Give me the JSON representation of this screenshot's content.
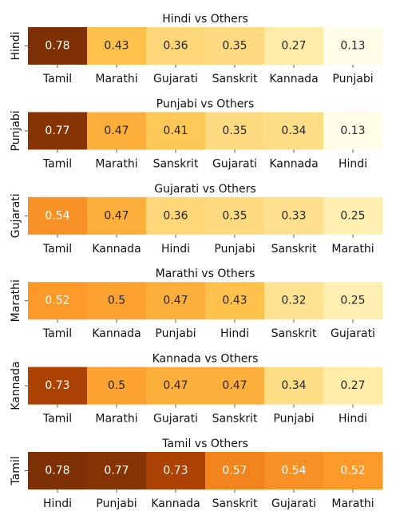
{
  "chart_data": [
    {
      "type": "heatmap",
      "title": "Hindi vs Others",
      "ylabel": "Hindi",
      "categories": [
        "Tamil",
        "Marathi",
        "Gujarati",
        "Sanskrit",
        "Kannada",
        "Punjabi"
      ],
      "values": [
        0.78,
        0.43,
        0.36,
        0.35,
        0.27,
        0.13
      ]
    },
    {
      "type": "heatmap",
      "title": "Punjabi vs Others",
      "ylabel": "Punjabi",
      "categories": [
        "Tamil",
        "Marathi",
        "Sanskrit",
        "Gujarati",
        "Kannada",
        "Hindi"
      ],
      "values": [
        0.77,
        0.47,
        0.41,
        0.35,
        0.34,
        0.13
      ]
    },
    {
      "type": "heatmap",
      "title": "Gujarati vs Others",
      "ylabel": "Gujarati",
      "categories": [
        "Tamil",
        "Kannada",
        "Hindi",
        "Punjabi",
        "Sanskrit",
        "Marathi"
      ],
      "values": [
        0.54,
        0.47,
        0.36,
        0.35,
        0.33,
        0.25
      ]
    },
    {
      "type": "heatmap",
      "title": "Marathi vs Others",
      "ylabel": "Marathi",
      "categories": [
        "Tamil",
        "Kannada",
        "Punjabi",
        "Hindi",
        "Sanskrit",
        "Gujarati"
      ],
      "values": [
        0.52,
        0.5,
        0.47,
        0.43,
        0.32,
        0.25
      ]
    },
    {
      "type": "heatmap",
      "title": "Kannada vs Others",
      "ylabel": "Kannada",
      "categories": [
        "Tamil",
        "Marathi",
        "Gujarati",
        "Sanskrit",
        "Punjabi",
        "Hindi"
      ],
      "values": [
        0.73,
        0.5,
        0.47,
        0.47,
        0.34,
        0.27
      ]
    },
    {
      "type": "heatmap",
      "title": "Tamil vs Others",
      "ylabel": "Tamil",
      "categories": [
        "Hindi",
        "Punjabi",
        "Kannada",
        "Sanskrit",
        "Gujarati",
        "Marathi"
      ],
      "values": [
        0.78,
        0.77,
        0.73,
        0.57,
        0.54,
        0.52
      ]
    }
  ],
  "colormap": "YlOrBr",
  "color_range": [
    0.13,
    0.78
  ]
}
